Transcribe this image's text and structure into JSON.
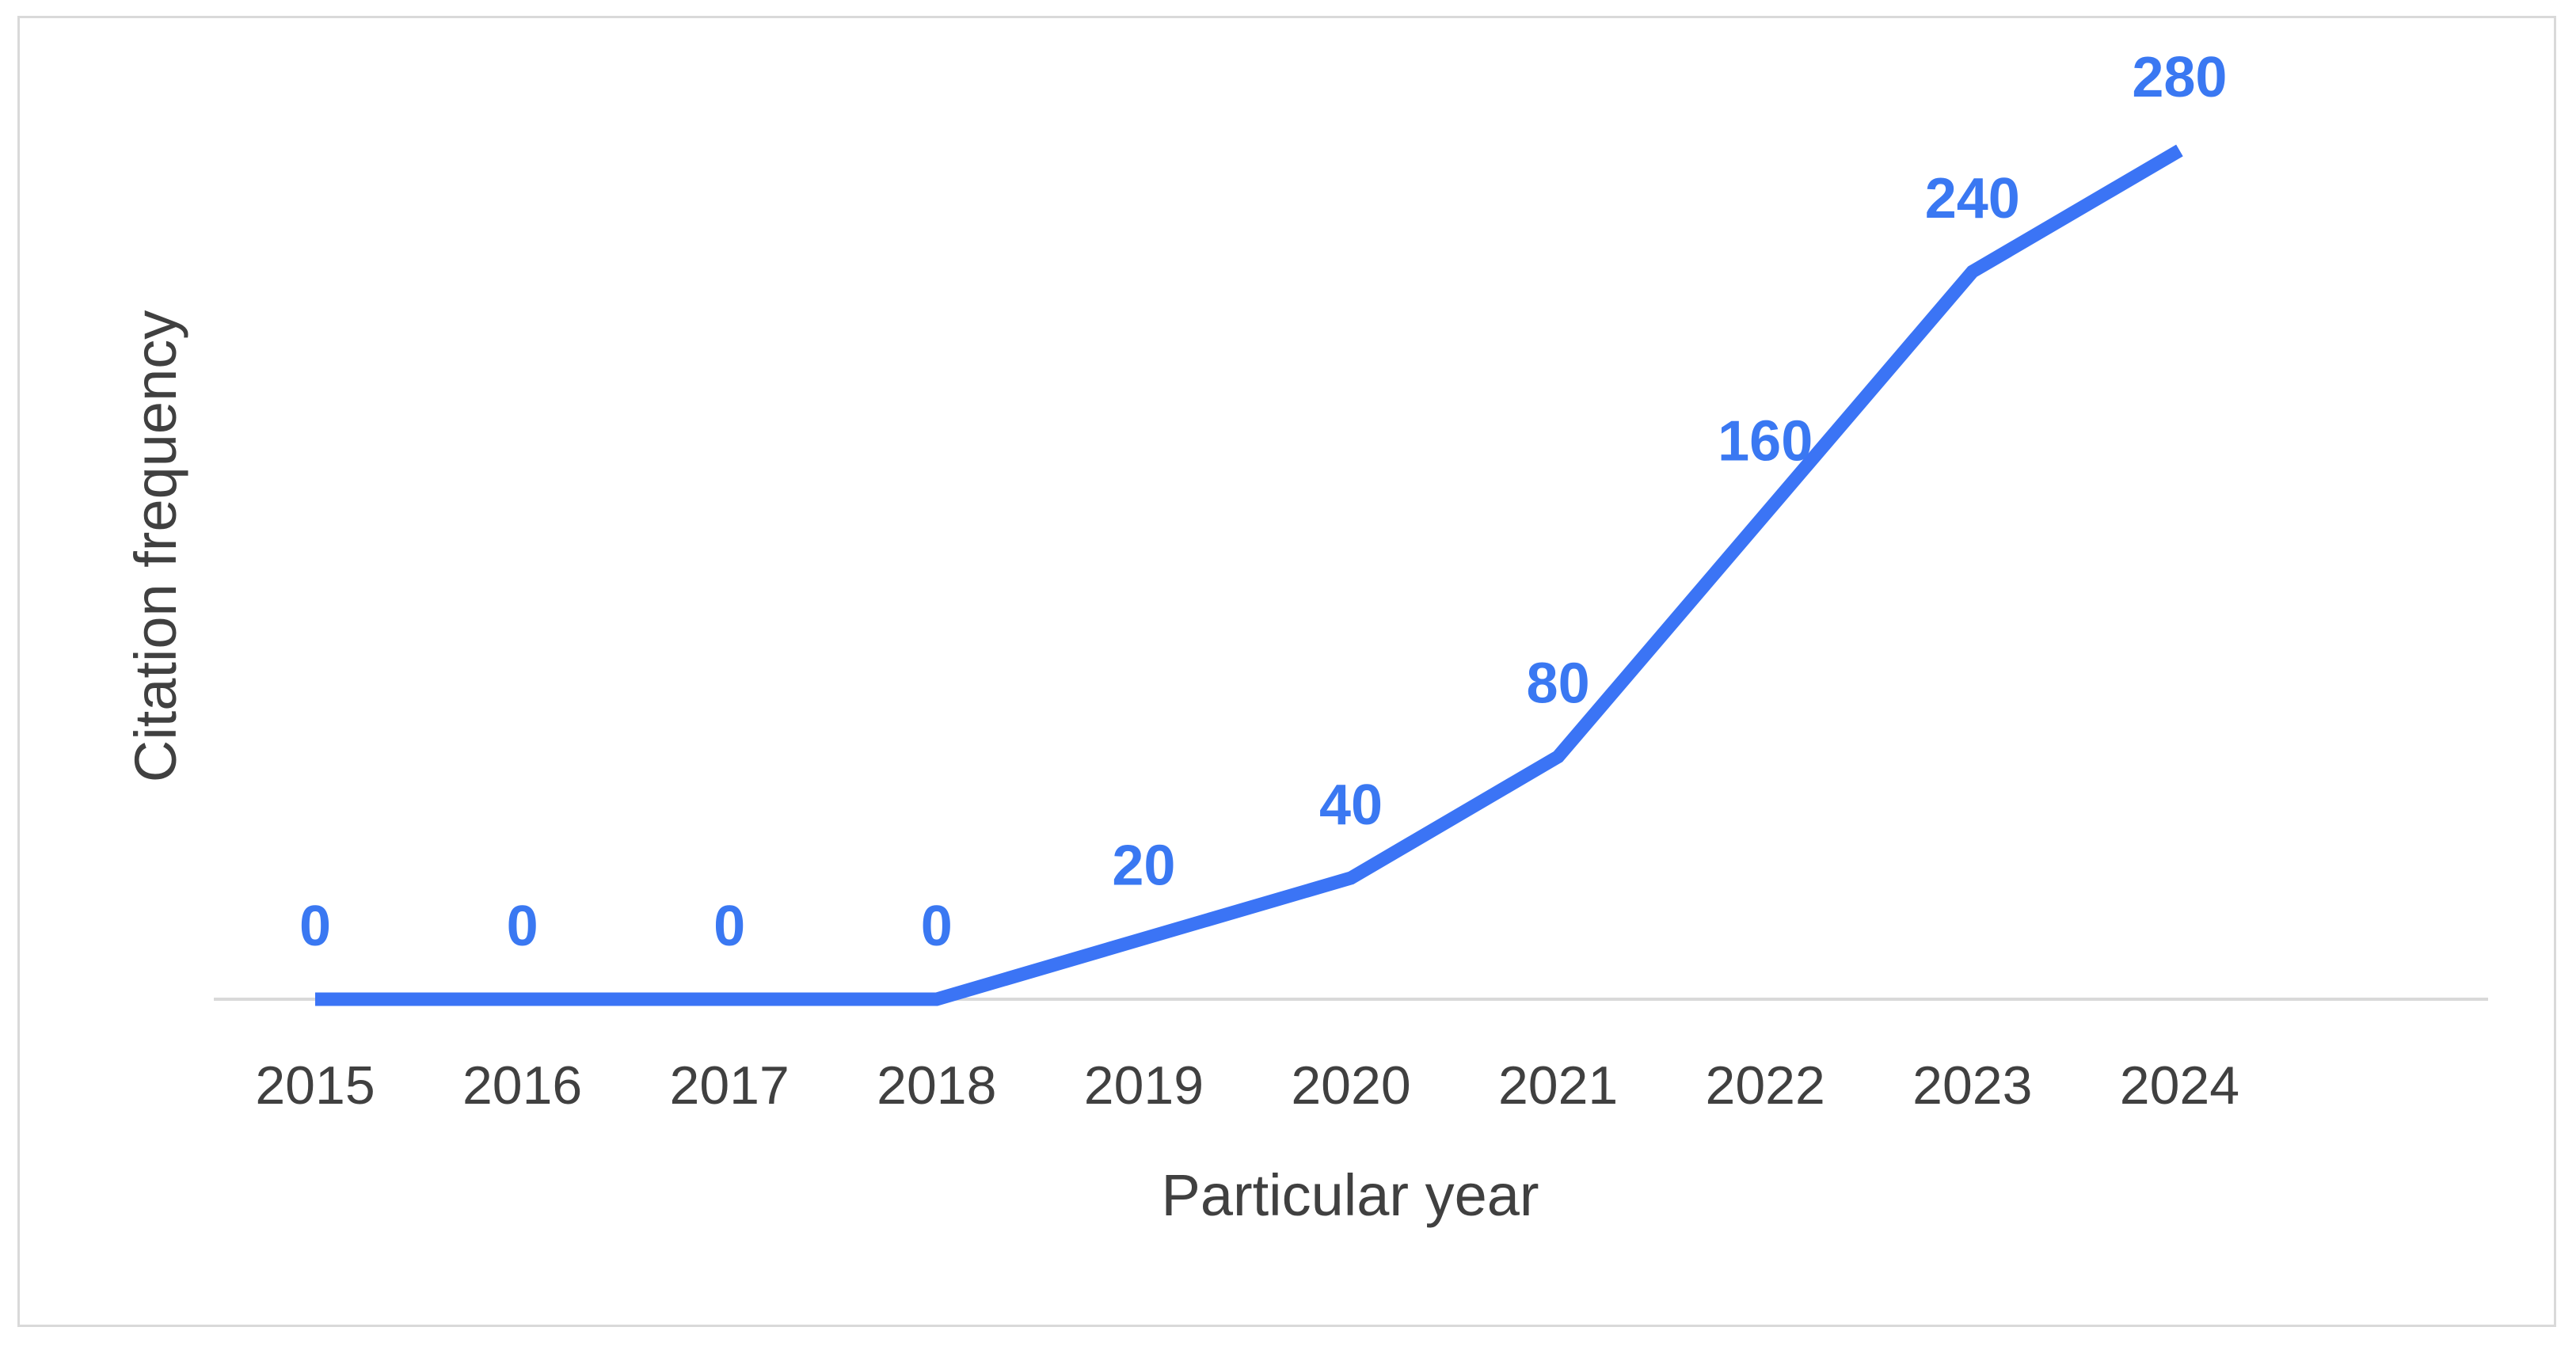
{
  "chart_data": {
    "type": "line",
    "xlabel": "Particular year",
    "ylabel": "Citation frequency",
    "categories": [
      "2015",
      "2016",
      "2017",
      "2018",
      "2019",
      "2020",
      "2021",
      "2022",
      "2023",
      "2024"
    ],
    "values": [
      0,
      0,
      0,
      0,
      20,
      40,
      80,
      160,
      240,
      280
    ],
    "data_labels_shown": true,
    "drop_lines": true,
    "grid": false,
    "y_axis_visible": false,
    "ylim": [
      0,
      280
    ],
    "colors": {
      "line": "#3b74f5",
      "data_label": "#3a78f2",
      "axis": "#d9d9d9",
      "text": "#404040"
    }
  }
}
